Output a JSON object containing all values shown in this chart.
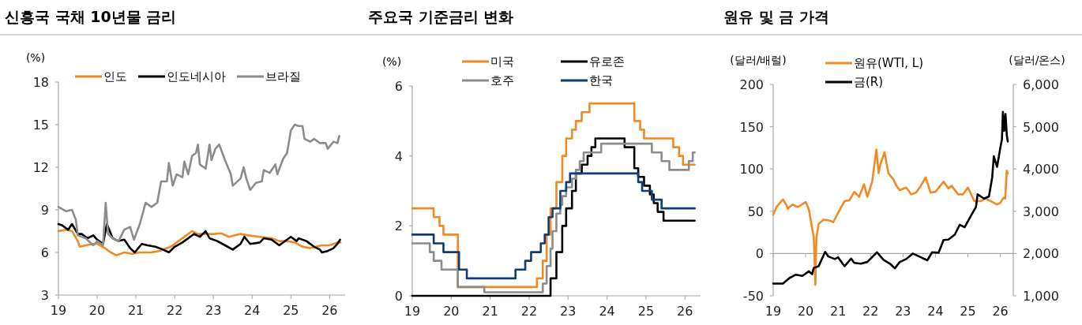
{
  "chart_data": [
    {
      "type": "line",
      "title": "신흥국 국채 10년물 금리",
      "ylabel": "(%)",
      "xlim": [
        2019,
        2026.4
      ],
      "xticks": [
        {
          "value": 2019,
          "label": "19"
        },
        {
          "value": 2020,
          "label": "20"
        },
        {
          "value": 2021,
          "label": "21"
        },
        {
          "value": 2022,
          "label": "22"
        },
        {
          "value": 2023,
          "label": "23"
        },
        {
          "value": 2024,
          "label": "24"
        },
        {
          "value": 2025,
          "label": "25"
        },
        {
          "value": 2026,
          "label": "26"
        }
      ],
      "ylim": [
        3,
        18
      ],
      "yticks": [
        3,
        6,
        9,
        12,
        15,
        18
      ],
      "legend": "top",
      "series": [
        {
          "name": "인도",
          "color": "#f08a24",
          "x": [
            2019,
            2019.2,
            2019.35,
            2019.5,
            2019.55,
            2019.7,
            2019.9,
            2020,
            2020.2,
            2020.35,
            2020.5,
            2020.7,
            2020.9,
            2021.1,
            2021.4,
            2021.6,
            2021.9,
            2022.1,
            2022.3,
            2022.45,
            2022.6,
            2022.8,
            2023,
            2023.2,
            2023.4,
            2023.7,
            2023.9,
            2024.2,
            2024.5,
            2024.7,
            2024.9,
            2025.1,
            2025.3,
            2025.5,
            2025.8,
            2026,
            2026.2,
            2026.28
          ],
          "values": [
            7.5,
            7.6,
            7.5,
            6.8,
            6.4,
            6.5,
            6.6,
            6.6,
            6.3,
            6.0,
            5.8,
            6.0,
            5.9,
            6.0,
            6.0,
            6.1,
            6.4,
            6.8,
            7.2,
            7.5,
            7.3,
            7.3,
            7.3,
            7.35,
            7.1,
            7.3,
            7.2,
            7.1,
            7.0,
            6.8,
            6.8,
            6.7,
            6.4,
            6.3,
            6.5,
            6.5,
            6.7,
            6.7
          ]
        },
        {
          "name": "인도네시아",
          "color": "#000000",
          "x": [
            2019,
            2019.1,
            2019.25,
            2019.35,
            2019.5,
            2019.6,
            2019.75,
            2019.9,
            2020,
            2020.15,
            2020.25,
            2020.4,
            2020.55,
            2020.7,
            2020.85,
            2020.97,
            2021.15,
            2021.3,
            2021.5,
            2021.7,
            2021.85,
            2022,
            2022.2,
            2022.35,
            2022.5,
            2022.65,
            2022.8,
            2022.9,
            2023.1,
            2023.3,
            2023.5,
            2023.7,
            2023.8,
            2023.95,
            2024.2,
            2024.3,
            2024.5,
            2024.7,
            2024.9,
            2025,
            2025.15,
            2025.2,
            2025.4,
            2025.6,
            2025.75,
            2025.8,
            2025.95,
            2026.1,
            2026.2,
            2026.27
          ],
          "values": [
            8.0,
            7.9,
            7.6,
            8.0,
            7.3,
            7.3,
            7.0,
            7.2,
            6.9,
            6.6,
            8.0,
            7.0,
            6.8,
            6.9,
            6.3,
            6.0,
            6.6,
            6.5,
            6.4,
            6.2,
            6.0,
            6.4,
            6.7,
            7.0,
            7.3,
            7.1,
            7.5,
            7.0,
            6.8,
            6.5,
            6.2,
            6.6,
            7.1,
            6.6,
            6.7,
            7.0,
            6.9,
            6.5,
            6.9,
            7.1,
            6.8,
            7.0,
            6.8,
            6.4,
            6.2,
            6.0,
            6.1,
            6.3,
            6.6,
            6.9
          ]
        },
        {
          "name": "브라질",
          "color": "#8c8c8c",
          "x": [
            2019,
            2019.2,
            2019.35,
            2019.45,
            2019.5,
            2019.7,
            2019.9,
            2020,
            2020.15,
            2020.22,
            2020.28,
            2020.4,
            2020.55,
            2020.7,
            2020.85,
            2020.95,
            2021.1,
            2021.25,
            2021.4,
            2021.55,
            2021.65,
            2021.8,
            2021.85,
            2021.95,
            2022.05,
            2022.2,
            2022.25,
            2022.35,
            2022.45,
            2022.55,
            2022.6,
            2022.65,
            2022.8,
            2022.9,
            2022.95,
            2023.05,
            2023.15,
            2023.3,
            2023.45,
            2023.5,
            2023.7,
            2023.78,
            2023.85,
            2023.95,
            2024.1,
            2024.25,
            2024.3,
            2024.45,
            2024.6,
            2024.65,
            2024.8,
            2024.9,
            2025,
            2025.1,
            2025.2,
            2025.3,
            2025.35,
            2025.5,
            2025.6,
            2025.75,
            2025.9,
            2025.95,
            2026.1,
            2026.2,
            2026.25
          ],
          "values": [
            9.2,
            8.9,
            9.0,
            8.3,
            7.2,
            7.0,
            6.5,
            6.8,
            6.5,
            9.5,
            7.3,
            7.0,
            6.8,
            7.6,
            7.8,
            6.9,
            8.0,
            9.5,
            9.2,
            9.5,
            11.0,
            11.0,
            12.3,
            10.7,
            11.5,
            11.3,
            12.4,
            11.5,
            12.8,
            13.0,
            13.6,
            12.2,
            11.9,
            13.6,
            12.5,
            13.3,
            13.6,
            12.5,
            11.5,
            10.7,
            11.2,
            12.0,
            11.2,
            10.4,
            10.9,
            11.0,
            11.8,
            11.6,
            12.2,
            11.5,
            12.6,
            13.0,
            14.6,
            15.0,
            14.9,
            14.9,
            14.0,
            13.8,
            14.0,
            13.7,
            13.7,
            13.3,
            13.8,
            13.7,
            14.2
          ]
        }
      ]
    },
    {
      "type": "step",
      "title": "주요국 기준금리 변화",
      "ylabel": "(%)",
      "xlim": [
        2019,
        2026.4
      ],
      "xticks": [
        {
          "value": 2019,
          "label": "19"
        },
        {
          "value": 2020,
          "label": "20"
        },
        {
          "value": 2021,
          "label": "21"
        },
        {
          "value": 2022,
          "label": "22"
        },
        {
          "value": 2023,
          "label": "23"
        },
        {
          "value": 2024,
          "label": "24"
        },
        {
          "value": 2025,
          "label": "25"
        },
        {
          "value": 2026,
          "label": "26"
        }
      ],
      "ylim": [
        0,
        6
      ],
      "yticks": [
        0,
        2,
        4,
        6
      ],
      "legend": "top",
      "series": [
        {
          "name": "미국",
          "color": "#f08a24",
          "x": [
            2019,
            2019.55,
            2019.7,
            2019.8,
            2020.17,
            2022.2,
            2022.35,
            2022.45,
            2022.55,
            2022.7,
            2022.85,
            2022.95,
            2023.1,
            2023.2,
            2023.35,
            2023.55,
            2024.7,
            2024.85,
            2024.95,
            2025.7,
            2025.85,
            2025.95,
            2026.25
          ],
          "values": [
            2.5,
            2.25,
            2.0,
            1.75,
            0.25,
            0.5,
            1.0,
            1.75,
            2.5,
            3.25,
            4.0,
            4.5,
            4.75,
            5.0,
            5.25,
            5.5,
            5.0,
            4.75,
            4.5,
            4.25,
            4.0,
            3.75,
            3.75
          ]
        },
        {
          "name": "유로존",
          "color": "#000000",
          "x": [
            2019,
            2022.55,
            2022.7,
            2022.85,
            2022.95,
            2023.1,
            2023.2,
            2023.35,
            2023.5,
            2023.6,
            2023.7,
            2024.45,
            2024.7,
            2024.8,
            2024.95,
            2025.1,
            2025.2,
            2025.3,
            2025.45,
            2026.25
          ],
          "values": [
            0,
            0.5,
            1.25,
            2.0,
            2.5,
            3.0,
            3.5,
            3.75,
            4.0,
            4.25,
            4.5,
            4.25,
            3.65,
            3.4,
            3.15,
            2.9,
            2.65,
            2.4,
            2.15,
            2.15
          ]
        },
        {
          "name": "호주",
          "color": "#8c8c8c",
          "x": [
            2019,
            2019.45,
            2019.55,
            2019.75,
            2020.17,
            2020.85,
            2022.35,
            2022.45,
            2022.55,
            2022.6,
            2022.7,
            2022.8,
            2022.85,
            2022.95,
            2023.1,
            2023.2,
            2023.3,
            2023.4,
            2023.85,
            2025.15,
            2025.4,
            2025.6,
            2026.1,
            2026.2,
            2026.25
          ],
          "values": [
            1.5,
            1.25,
            1.0,
            0.75,
            0.25,
            0.1,
            0.35,
            0.85,
            1.35,
            1.85,
            2.35,
            2.6,
            2.85,
            3.1,
            3.35,
            3.6,
            3.85,
            4.1,
            4.35,
            4.1,
            3.85,
            3.6,
            3.85,
            4.1,
            4.1
          ]
        },
        {
          "name": "한국",
          "color": "#0f3d73",
          "x": [
            2019,
            2019.55,
            2019.8,
            2020.2,
            2020.4,
            2021.65,
            2021.9,
            2022.05,
            2022.3,
            2022.4,
            2022.5,
            2022.6,
            2022.8,
            2022.95,
            2023.05,
            2024.8,
            2024.9,
            2025.15,
            2025.4,
            2026.25
          ],
          "values": [
            1.75,
            1.5,
            1.25,
            0.75,
            0.5,
            0.75,
            1.0,
            1.25,
            1.5,
            1.75,
            2.25,
            2.5,
            3.0,
            3.25,
            3.5,
            3.25,
            3.0,
            2.75,
            2.5,
            2.5
          ]
        }
      ]
    },
    {
      "type": "line",
      "title": "원유 및 금 가격",
      "ylabel": "(달러/배럴)",
      "y2label": "(달러/온스)",
      "xlim": [
        2019,
        2026.4
      ],
      "xticks": [
        {
          "value": 2019,
          "label": "19"
        },
        {
          "value": 2020,
          "label": "20"
        },
        {
          "value": 2021,
          "label": "21"
        },
        {
          "value": 2022,
          "label": "22"
        },
        {
          "value": 2023,
          "label": "23"
        },
        {
          "value": 2024,
          "label": "24"
        },
        {
          "value": 2025,
          "label": "25"
        },
        {
          "value": 2026,
          "label": "26"
        }
      ],
      "ylim": [
        -50,
        200
      ],
      "yticks": [
        -50,
        0,
        50,
        100,
        150,
        200
      ],
      "y2lim": [
        1000,
        6000
      ],
      "y2ticks": [
        {
          "value": 1000,
          "label": "1,000"
        },
        {
          "value": 2000,
          "label": "2,000"
        },
        {
          "value": 3000,
          "label": "3,000"
        },
        {
          "value": 4000,
          "label": "4,000"
        },
        {
          "value": 5000,
          "label": "5,000"
        },
        {
          "value": 6000,
          "label": "6,000"
        }
      ],
      "legend": "top left",
      "series": [
        {
          "name": "원유(WTI, L)",
          "color": "#f08a24",
          "x": [
            2019,
            2019.1,
            2019.3,
            2019.4,
            2019.45,
            2019.6,
            2019.75,
            2019.85,
            2020,
            2020.1,
            2020.2,
            2020.25,
            2020.3,
            2020.33,
            2020.4,
            2020.55,
            2020.75,
            2020.85,
            2021,
            2021.2,
            2021.35,
            2021.5,
            2021.65,
            2021.8,
            2021.9,
            2022.05,
            2022.18,
            2022.25,
            2022.3,
            2022.43,
            2022.55,
            2022.7,
            2022.8,
            2022.9,
            2023.1,
            2023.25,
            2023.4,
            2023.55,
            2023.7,
            2023.85,
            2024,
            2024.25,
            2024.4,
            2024.5,
            2024.7,
            2024.85,
            2025,
            2025.2,
            2025.4,
            2025.55,
            2025.7,
            2025.9,
            2026,
            2026.1,
            2026.15,
            2026.2,
            2026.23
          ],
          "values": [
            46,
            55,
            64,
            58,
            53,
            58,
            55,
            57,
            61,
            52,
            30,
            20,
            -37,
            18,
            35,
            40,
            39,
            37,
            48,
            62,
            63,
            73,
            67,
            82,
            67,
            85,
            123,
            95,
            105,
            120,
            95,
            88,
            80,
            75,
            78,
            70,
            72,
            80,
            90,
            72,
            73,
            85,
            77,
            80,
            70,
            70,
            78,
            62,
            62,
            65,
            62,
            58,
            60,
            66,
            65,
            98,
            95
          ]
        },
        {
          "name": "금(R)",
          "color": "#000000",
          "axis": "y2",
          "x": [
            2019,
            2019.3,
            2019.5,
            2019.7,
            2019.9,
            2020.1,
            2020.2,
            2020.25,
            2020.4,
            2020.6,
            2020.7,
            2020.9,
            2021,
            2021.2,
            2021.4,
            2021.5,
            2021.7,
            2021.9,
            2022.2,
            2022.4,
            2022.6,
            2022.75,
            2022.9,
            2023.1,
            2023.3,
            2023.5,
            2023.75,
            2023.9,
            2024.1,
            2024.25,
            2024.4,
            2024.6,
            2024.75,
            2024.9,
            2025.1,
            2025.25,
            2025.3,
            2025.5,
            2025.65,
            2025.75,
            2025.8,
            2025.9,
            2026,
            2026.05,
            2026.08,
            2026.12,
            2026.16,
            2026.2,
            2026.23
          ],
          "values": [
            1290,
            1290,
            1420,
            1500,
            1470,
            1580,
            1510,
            1660,
            1700,
            2040,
            1930,
            1870,
            1910,
            1700,
            1880,
            1780,
            1760,
            1800,
            2030,
            1850,
            1760,
            1650,
            1800,
            1870,
            2000,
            1930,
            1840,
            2030,
            2020,
            2320,
            2330,
            2450,
            2680,
            2620,
            2900,
            3100,
            3400,
            3300,
            3350,
            3800,
            4300,
            4050,
            4500,
            4700,
            5350,
            4900,
            5300,
            4800,
            4650
          ]
        }
      ]
    }
  ]
}
